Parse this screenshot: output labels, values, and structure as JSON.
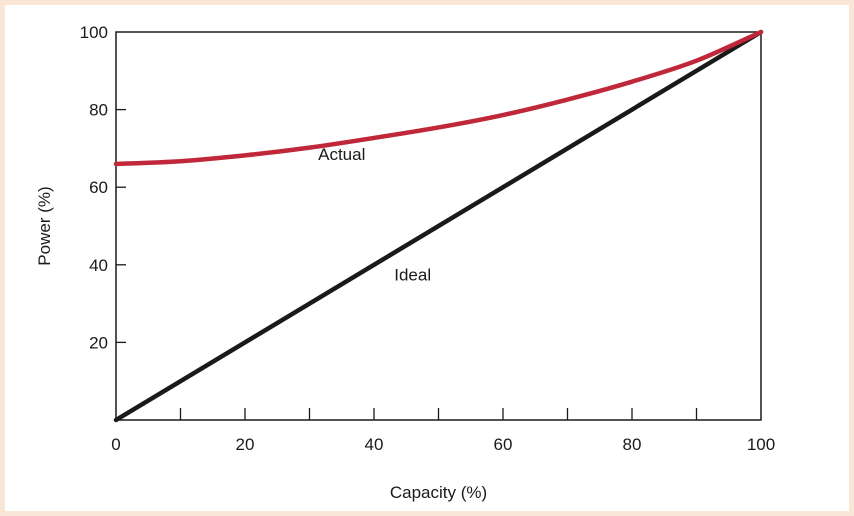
{
  "chart_data": {
    "type": "line",
    "xlabel": "Capacity (%)",
    "ylabel": "Power (%)",
    "xlim": [
      0,
      100
    ],
    "ylim": [
      0,
      100
    ],
    "x_ticks": [
      0,
      20,
      40,
      60,
      80,
      100
    ],
    "x_minor_ticks": [
      10,
      30,
      50,
      70,
      90
    ],
    "y_ticks": [
      20,
      40,
      60,
      80,
      100
    ],
    "grid": false,
    "legend": "none",
    "series": [
      {
        "name": "Actual",
        "color": "#c0283a",
        "points": [
          [
            0,
            66
          ],
          [
            10,
            66.7
          ],
          [
            20,
            68.2
          ],
          [
            30,
            70.2
          ],
          [
            40,
            72.7
          ],
          [
            50,
            75.4
          ],
          [
            60,
            78.6
          ],
          [
            70,
            82.6
          ],
          [
            80,
            87.2
          ],
          [
            90,
            92.6
          ],
          [
            100,
            100
          ]
        ]
      },
      {
        "name": "Ideal",
        "color": "#1a1a1a",
        "points": [
          [
            0,
            0
          ],
          [
            100,
            100
          ]
        ]
      }
    ],
    "annotations": [
      {
        "text": "Actual",
        "x": 35,
        "y": 67
      },
      {
        "text": "Ideal",
        "x": 46,
        "y": 36
      }
    ]
  }
}
